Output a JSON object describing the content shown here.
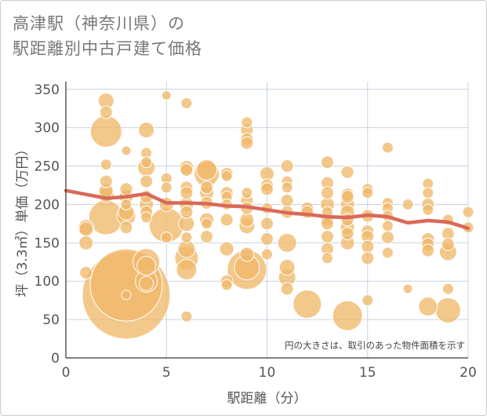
{
  "title": {
    "line1": "高津駅（神奈川県）の",
    "line2": "駅距離別中古戸建て価格"
  },
  "note": "円の大きさは、取引のあった物件面積を示す",
  "colors": {
    "bubble_fill": "#f0b86a",
    "bubble_stroke": "#ffffff",
    "trend_line": "#d9695a",
    "grid": "#c8d4e0",
    "plot_bg": "#ffffff"
  },
  "chart_data": {
    "type": "scatter",
    "xlabel": "駅距離（分）",
    "ylabel": "坪（3.3㎡）単価（万円）",
    "xlim": [
      0,
      20
    ],
    "ylim": [
      0,
      360
    ],
    "xticks": [
      0,
      5,
      10,
      15,
      20
    ],
    "yticks": [
      0,
      50,
      100,
      150,
      200,
      250,
      300,
      350
    ],
    "grid": true,
    "bubble_size_meaning": "物件面積",
    "points": [
      {
        "x": 1,
        "y": 170,
        "s": 10
      },
      {
        "x": 1,
        "y": 168,
        "s": 9
      },
      {
        "x": 1,
        "y": 150,
        "s": 9
      },
      {
        "x": 1,
        "y": 111,
        "s": 8
      },
      {
        "x": 2,
        "y": 335,
        "s": 10
      },
      {
        "x": 2,
        "y": 320,
        "s": 8
      },
      {
        "x": 2,
        "y": 295,
        "s": 20
      },
      {
        "x": 2,
        "y": 252,
        "s": 7
      },
      {
        "x": 2,
        "y": 230,
        "s": 8
      },
      {
        "x": 2,
        "y": 218,
        "s": 9
      },
      {
        "x": 2,
        "y": 213,
        "s": 10
      },
      {
        "x": 2,
        "y": 183,
        "s": 22
      },
      {
        "x": 3,
        "y": 270,
        "s": 6
      },
      {
        "x": 3,
        "y": 220,
        "s": 8
      },
      {
        "x": 3,
        "y": 210,
        "s": 9
      },
      {
        "x": 3,
        "y": 200,
        "s": 7
      },
      {
        "x": 3,
        "y": 190,
        "s": 10
      },
      {
        "x": 3,
        "y": 185,
        "s": 12
      },
      {
        "x": 3,
        "y": 170,
        "s": 8
      },
      {
        "x": 3,
        "y": 95,
        "s": 46
      },
      {
        "x": 3,
        "y": 82,
        "s": 56
      },
      {
        "x": 3,
        "y": 82,
        "s": 6
      },
      {
        "x": 4,
        "y": 297,
        "s": 10
      },
      {
        "x": 4,
        "y": 267,
        "s": 7
      },
      {
        "x": 4,
        "y": 255,
        "s": 7
      },
      {
        "x": 4,
        "y": 248,
        "s": 11
      },
      {
        "x": 4,
        "y": 230,
        "s": 8
      },
      {
        "x": 4,
        "y": 210,
        "s": 8
      },
      {
        "x": 4,
        "y": 200,
        "s": 9
      },
      {
        "x": 4,
        "y": 190,
        "s": 8
      },
      {
        "x": 4,
        "y": 183,
        "s": 7
      },
      {
        "x": 4,
        "y": 125,
        "s": 17
      },
      {
        "x": 4,
        "y": 120,
        "s": 12
      },
      {
        "x": 4,
        "y": 100,
        "s": 14
      },
      {
        "x": 4,
        "y": 97,
        "s": 9
      },
      {
        "x": 5,
        "y": 342,
        "s": 6
      },
      {
        "x": 5,
        "y": 234,
        "s": 7
      },
      {
        "x": 5,
        "y": 222,
        "s": 7
      },
      {
        "x": 5,
        "y": 200,
        "s": 9
      },
      {
        "x": 5,
        "y": 173,
        "s": 22
      },
      {
        "x": 5,
        "y": 157,
        "s": 7
      },
      {
        "x": 6,
        "y": 332,
        "s": 7
      },
      {
        "x": 6,
        "y": 248,
        "s": 9
      },
      {
        "x": 6,
        "y": 245,
        "s": 8
      },
      {
        "x": 6,
        "y": 222,
        "s": 8
      },
      {
        "x": 6,
        "y": 215,
        "s": 8
      },
      {
        "x": 6,
        "y": 200,
        "s": 9
      },
      {
        "x": 6,
        "y": 190,
        "s": 8
      },
      {
        "x": 6,
        "y": 175,
        "s": 10
      },
      {
        "x": 6,
        "y": 157,
        "s": 7
      },
      {
        "x": 6,
        "y": 142,
        "s": 11
      },
      {
        "x": 6,
        "y": 130,
        "s": 15
      },
      {
        "x": 6,
        "y": 115,
        "s": 13
      },
      {
        "x": 6,
        "y": 54,
        "s": 7
      },
      {
        "x": 7,
        "y": 245,
        "s": 13
      },
      {
        "x": 7,
        "y": 240,
        "s": 16
      },
      {
        "x": 7,
        "y": 222,
        "s": 8
      },
      {
        "x": 7,
        "y": 215,
        "s": 9
      },
      {
        "x": 7,
        "y": 202,
        "s": 8
      },
      {
        "x": 7,
        "y": 180,
        "s": 9
      },
      {
        "x": 7,
        "y": 175,
        "s": 7
      },
      {
        "x": 7,
        "y": 158,
        "s": 8
      },
      {
        "x": 8,
        "y": 240,
        "s": 8
      },
      {
        "x": 8,
        "y": 237,
        "s": 7
      },
      {
        "x": 8,
        "y": 215,
        "s": 8
      },
      {
        "x": 8,
        "y": 210,
        "s": 7
      },
      {
        "x": 8,
        "y": 200,
        "s": 7
      },
      {
        "x": 8,
        "y": 180,
        "s": 8
      },
      {
        "x": 8,
        "y": 142,
        "s": 9
      },
      {
        "x": 8,
        "y": 100,
        "s": 8
      },
      {
        "x": 8,
        "y": 95,
        "s": 7
      },
      {
        "x": 9,
        "y": 307,
        "s": 7
      },
      {
        "x": 9,
        "y": 297,
        "s": 8
      },
      {
        "x": 9,
        "y": 285,
        "s": 8
      },
      {
        "x": 9,
        "y": 280,
        "s": 8
      },
      {
        "x": 9,
        "y": 215,
        "s": 7
      },
      {
        "x": 9,
        "y": 205,
        "s": 8
      },
      {
        "x": 9,
        "y": 195,
        "s": 8
      },
      {
        "x": 9,
        "y": 180,
        "s": 9
      },
      {
        "x": 9,
        "y": 172,
        "s": 10
      },
      {
        "x": 9,
        "y": 135,
        "s": 9
      },
      {
        "x": 9,
        "y": 115,
        "s": 25
      },
      {
        "x": 9,
        "y": 118,
        "s": 16
      },
      {
        "x": 10,
        "y": 240,
        "s": 9
      },
      {
        "x": 10,
        "y": 225,
        "s": 8
      },
      {
        "x": 10,
        "y": 220,
        "s": 8
      },
      {
        "x": 10,
        "y": 195,
        "s": 7
      },
      {
        "x": 10,
        "y": 175,
        "s": 8
      },
      {
        "x": 10,
        "y": 155,
        "s": 8
      },
      {
        "x": 10,
        "y": 135,
        "s": 7
      },
      {
        "x": 11,
        "y": 250,
        "s": 8
      },
      {
        "x": 11,
        "y": 230,
        "s": 7
      },
      {
        "x": 11,
        "y": 222,
        "s": 7
      },
      {
        "x": 11,
        "y": 205,
        "s": 8
      },
      {
        "x": 11,
        "y": 190,
        "s": 8
      },
      {
        "x": 11,
        "y": 150,
        "s": 12
      },
      {
        "x": 11,
        "y": 118,
        "s": 10
      },
      {
        "x": 11,
        "y": 105,
        "s": 11
      },
      {
        "x": 11,
        "y": 90,
        "s": 8
      },
      {
        "x": 12,
        "y": 195,
        "s": 8
      },
      {
        "x": 12,
        "y": 190,
        "s": 8
      },
      {
        "x": 12,
        "y": 70,
        "s": 18
      },
      {
        "x": 13,
        "y": 255,
        "s": 8
      },
      {
        "x": 13,
        "y": 228,
        "s": 8
      },
      {
        "x": 13,
        "y": 215,
        "s": 8
      },
      {
        "x": 13,
        "y": 200,
        "s": 9
      },
      {
        "x": 13,
        "y": 190,
        "s": 7
      },
      {
        "x": 13,
        "y": 180,
        "s": 8
      },
      {
        "x": 13,
        "y": 175,
        "s": 8
      },
      {
        "x": 13,
        "y": 158,
        "s": 8
      },
      {
        "x": 13,
        "y": 142,
        "s": 8
      },
      {
        "x": 13,
        "y": 130,
        "s": 7
      },
      {
        "x": 14,
        "y": 242,
        "s": 8
      },
      {
        "x": 14,
        "y": 213,
        "s": 8
      },
      {
        "x": 14,
        "y": 210,
        "s": 8
      },
      {
        "x": 14,
        "y": 200,
        "s": 9
      },
      {
        "x": 14,
        "y": 190,
        "s": 9
      },
      {
        "x": 14,
        "y": 180,
        "s": 8
      },
      {
        "x": 14,
        "y": 170,
        "s": 9
      },
      {
        "x": 14,
        "y": 162,
        "s": 8
      },
      {
        "x": 14,
        "y": 150,
        "s": 9
      },
      {
        "x": 14,
        "y": 55,
        "s": 19
      },
      {
        "x": 15,
        "y": 220,
        "s": 7
      },
      {
        "x": 15,
        "y": 215,
        "s": 7
      },
      {
        "x": 15,
        "y": 185,
        "s": 8
      },
      {
        "x": 15,
        "y": 165,
        "s": 8
      },
      {
        "x": 15,
        "y": 158,
        "s": 8
      },
      {
        "x": 15,
        "y": 145,
        "s": 8
      },
      {
        "x": 15,
        "y": 130,
        "s": 8
      },
      {
        "x": 15,
        "y": 75,
        "s": 7
      },
      {
        "x": 16,
        "y": 274,
        "s": 7
      },
      {
        "x": 16,
        "y": 202,
        "s": 7
      },
      {
        "x": 16,
        "y": 195,
        "s": 7
      },
      {
        "x": 16,
        "y": 185,
        "s": 7
      },
      {
        "x": 16,
        "y": 172,
        "s": 7
      },
      {
        "x": 16,
        "y": 157,
        "s": 8
      },
      {
        "x": 16,
        "y": 137,
        "s": 7
      },
      {
        "x": 17,
        "y": 200,
        "s": 7
      },
      {
        "x": 17,
        "y": 90,
        "s": 6
      },
      {
        "x": 18,
        "y": 227,
        "s": 7
      },
      {
        "x": 18,
        "y": 215,
        "s": 7
      },
      {
        "x": 18,
        "y": 200,
        "s": 8
      },
      {
        "x": 18,
        "y": 193,
        "s": 7
      },
      {
        "x": 18,
        "y": 155,
        "s": 8
      },
      {
        "x": 18,
        "y": 148,
        "s": 8
      },
      {
        "x": 18,
        "y": 140,
        "s": 8
      },
      {
        "x": 18,
        "y": 67,
        "s": 12
      },
      {
        "x": 19,
        "y": 180,
        "s": 7
      },
      {
        "x": 19,
        "y": 162,
        "s": 8
      },
      {
        "x": 19,
        "y": 148,
        "s": 8
      },
      {
        "x": 19,
        "y": 138,
        "s": 11
      },
      {
        "x": 19,
        "y": 90,
        "s": 7
      },
      {
        "x": 19,
        "y": 62,
        "s": 16
      },
      {
        "x": 20,
        "y": 190,
        "s": 7
      },
      {
        "x": 20,
        "y": 170,
        "s": 7
      }
    ],
    "trend": {
      "name": "",
      "x": [
        0,
        1,
        2,
        3,
        4,
        5,
        6,
        7,
        8,
        9,
        10,
        11,
        12,
        13,
        14,
        15,
        16,
        17,
        18,
        19,
        20
      ],
      "y": [
        218,
        213,
        208,
        210,
        214,
        202,
        202,
        201,
        198,
        197,
        193,
        189,
        187,
        184,
        183,
        186,
        184,
        176,
        179,
        177,
        169
      ]
    }
  }
}
